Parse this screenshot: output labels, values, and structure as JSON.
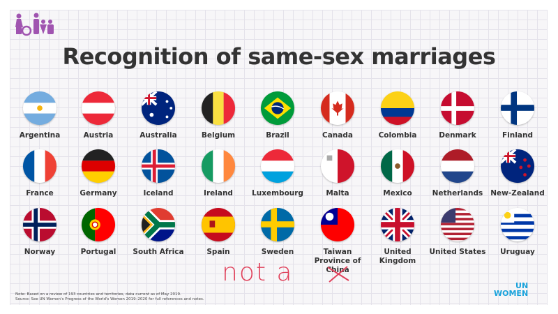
{
  "logo": {
    "icon": "family-figures-logo",
    "color": "#a054b0"
  },
  "title": "Recognition of same-sex marriages",
  "countries": [
    {
      "name": "Argentina",
      "icon": "argentina-flag-icon"
    },
    {
      "name": "Austria",
      "icon": "austria-flag-icon"
    },
    {
      "name": "Australia",
      "icon": "australia-flag-icon"
    },
    {
      "name": "Belgium",
      "icon": "belgium-flag-icon"
    },
    {
      "name": "Brazil",
      "icon": "brazil-flag-icon"
    },
    {
      "name": "Canada",
      "icon": "canada-flag-icon"
    },
    {
      "name": "Colombia",
      "icon": "colombia-flag-icon"
    },
    {
      "name": "Denmark",
      "icon": "denmark-flag-icon"
    },
    {
      "name": "Finland",
      "icon": "finland-flag-icon"
    },
    {
      "name": "France",
      "icon": "france-flag-icon"
    },
    {
      "name": "Germany",
      "icon": "germany-flag-icon"
    },
    {
      "name": "Iceland",
      "icon": "iceland-flag-icon"
    },
    {
      "name": "Ireland",
      "icon": "ireland-flag-icon"
    },
    {
      "name": "Luxembourg",
      "icon": "luxembourg-flag-icon"
    },
    {
      "name": "Malta",
      "icon": "malta-flag-icon"
    },
    {
      "name": "Mexico",
      "icon": "mexico-flag-icon"
    },
    {
      "name": "Netherlands",
      "icon": "netherlands-flag-icon"
    },
    {
      "name": "New-Zealand",
      "icon": "new-zealand-flag-icon"
    },
    {
      "name": "Norway",
      "icon": "norway-flag-icon"
    },
    {
      "name": "Portugal",
      "icon": "portugal-flag-icon"
    },
    {
      "name": "South Africa",
      "icon": "south-africa-flag-icon"
    },
    {
      "name": "Spain",
      "icon": "spain-flag-icon"
    },
    {
      "name": "Sweden",
      "icon": "sweden-flag-icon"
    },
    {
      "name": "Taiwan Province of China",
      "icon": "taiwan-flag-icon"
    },
    {
      "name": "United Kingdom",
      "icon": "uk-flag-icon"
    },
    {
      "name": "United States",
      "icon": "us-flag-icon"
    },
    {
      "name": "Uruguay",
      "icon": "uruguay-flag-icon"
    }
  ],
  "note_line1": "Note: Based on a review of 193 countries and territories, data current as of May 2019.",
  "note_line2": "Source: See UN Women's Progress of the World's Women 2019–2020 for full references and notes.",
  "handwriting": "not a",
  "handwriting_color": "#e0405a",
  "brand": {
    "line1": "UN",
    "line2": "WOMEN",
    "color": "#1aa3dc"
  }
}
